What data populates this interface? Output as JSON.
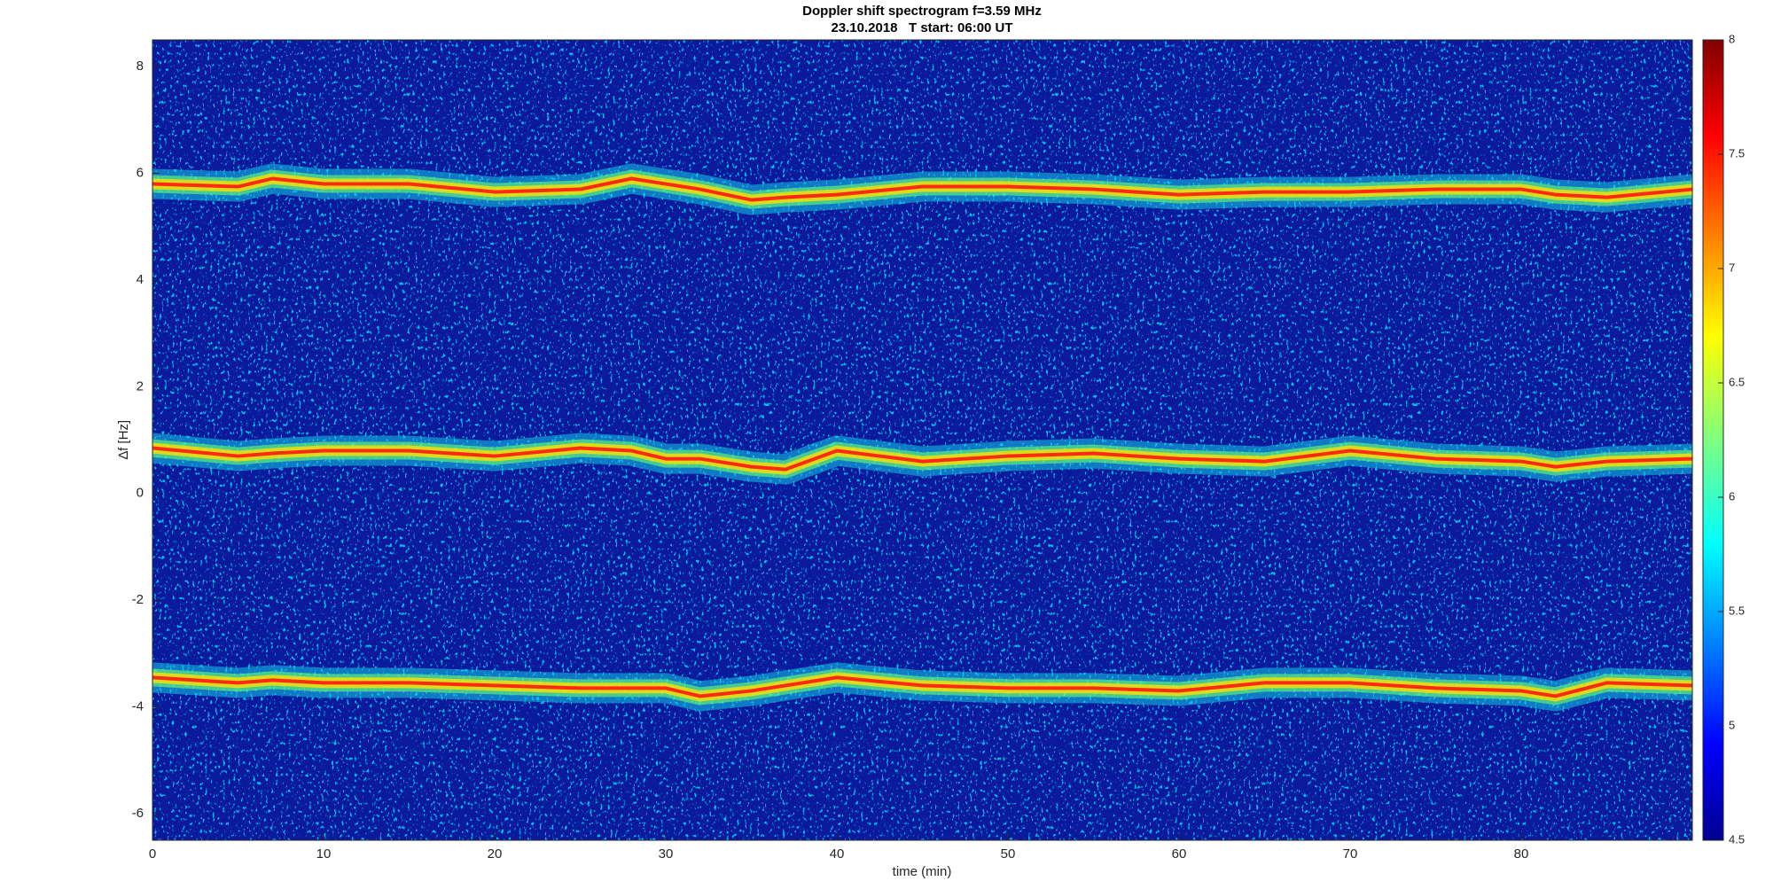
{
  "chart_data": {
    "type": "spectrogram",
    "title": "Doppler shift spectrogram f=3.59 MHz",
    "subtitle": "23.10.2018   T start: 06:00 UT",
    "xlabel": "time (min)",
    "ylabel": "∆f [Hz]",
    "xlim": [
      0,
      90
    ],
    "xticks": [
      0,
      10,
      20,
      30,
      40,
      50,
      60,
      70,
      80
    ],
    "ylim": [
      -6.5,
      8.5
    ],
    "yticks": [
      -6,
      -4,
      -2,
      0,
      2,
      4,
      6,
      8
    ],
    "background": "#0b1a9c",
    "x": [
      0,
      5,
      7,
      10,
      15,
      20,
      25,
      28,
      30,
      32,
      35,
      37,
      40,
      45,
      50,
      55,
      60,
      65,
      70,
      75,
      80,
      82,
      85,
      90
    ],
    "series": [
      {
        "color": "#ff2a10",
        "values": [
          5.8,
          5.75,
          5.9,
          5.8,
          5.8,
          5.65,
          5.7,
          5.9,
          5.8,
          5.7,
          5.5,
          5.55,
          5.6,
          5.75,
          5.75,
          5.7,
          5.6,
          5.65,
          5.65,
          5.7,
          5.7,
          5.6,
          5.55,
          5.7
        ]
      },
      {
        "color": "#ff2a10",
        "values": [
          0.85,
          0.7,
          0.75,
          0.8,
          0.8,
          0.7,
          0.85,
          0.8,
          0.65,
          0.65,
          0.5,
          0.45,
          0.8,
          0.6,
          0.7,
          0.75,
          0.65,
          0.6,
          0.8,
          0.65,
          0.6,
          0.5,
          0.6,
          0.65
        ]
      },
      {
        "color": "#ff2a10",
        "values": [
          -3.45,
          -3.55,
          -3.5,
          -3.55,
          -3.55,
          -3.6,
          -3.65,
          -3.65,
          -3.65,
          -3.8,
          -3.7,
          -3.6,
          -3.45,
          -3.6,
          -3.65,
          -3.65,
          -3.7,
          -3.55,
          -3.55,
          -3.65,
          -3.7,
          -3.8,
          -3.55,
          -3.6
        ]
      }
    ],
    "colorbar": {
      "lim": [
        4.5,
        8
      ],
      "ticks": [
        4.5,
        5,
        5.5,
        6,
        6.5,
        7,
        7.5,
        8
      ]
    }
  }
}
